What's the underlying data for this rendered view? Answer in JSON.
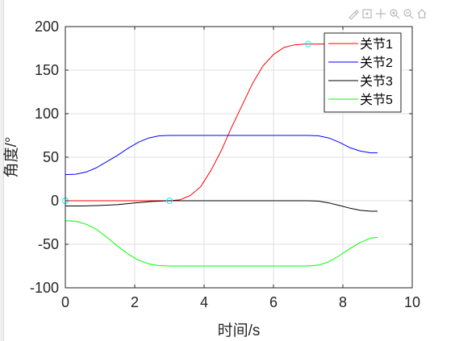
{
  "chart_data": {
    "type": "line",
    "title": "",
    "xlabel": "时间/s",
    "ylabel": "角度/°",
    "xlim": [
      0,
      10
    ],
    "ylim": [
      -100,
      200
    ],
    "xticks": [
      "0",
      "2",
      "4",
      "6",
      "8",
      "10"
    ],
    "yticks": [
      "-100",
      "-50",
      "0",
      "50",
      "100",
      "150",
      "200"
    ],
    "grid": true,
    "legend_position": "top-right",
    "series": [
      {
        "name": "关节1",
        "color": "#ff0000",
        "x": [
          0,
          0.5,
          1,
          1.5,
          2,
          2.5,
          3,
          3.3,
          3.6,
          3.9,
          4.2,
          4.5,
          4.8,
          5.1,
          5.4,
          5.7,
          6.0,
          6.3,
          6.6,
          6.9,
          7.2,
          7.5,
          8,
          8.5,
          9
        ],
        "y": [
          0,
          0,
          0,
          0,
          0,
          0,
          0,
          1,
          6,
          16,
          35,
          58,
          85,
          110,
          135,
          155,
          168,
          176,
          179,
          180,
          180,
          180,
          180,
          180,
          180
        ]
      },
      {
        "name": "关节2",
        "color": "#0000ff",
        "x": [
          0,
          0.3,
          0.6,
          0.9,
          1.2,
          1.5,
          1.8,
          2.1,
          2.4,
          2.7,
          3.0,
          4,
          5,
          6,
          7,
          7.3,
          7.6,
          7.9,
          8.2,
          8.5,
          8.8,
          9
        ],
        "y": [
          30,
          30.5,
          33,
          38,
          45,
          52,
          60,
          67,
          72,
          74.5,
          75,
          75,
          75,
          75,
          75,
          74.5,
          72,
          67,
          61,
          57,
          55,
          55
        ]
      },
      {
        "name": "关节3",
        "color": "#000000",
        "x": [
          0,
          0.5,
          1,
          1.5,
          2,
          2.5,
          3,
          4,
          5,
          6,
          7,
          7.3,
          7.6,
          7.9,
          8.2,
          8.5,
          8.8,
          9
        ],
        "y": [
          -6,
          -6,
          -5.5,
          -4.5,
          -2.5,
          -0.8,
          0,
          0,
          0,
          0,
          0,
          -0.5,
          -2.5,
          -5.5,
          -8.5,
          -11,
          -12,
          -12
        ]
      },
      {
        "name": "关节5",
        "color": "#00ff00",
        "x": [
          0,
          0.3,
          0.6,
          0.9,
          1.2,
          1.5,
          1.8,
          2.1,
          2.4,
          2.7,
          3.0,
          4,
          5,
          6,
          7,
          7.3,
          7.6,
          7.9,
          8.2,
          8.5,
          8.8,
          9
        ],
        "y": [
          -23,
          -23.5,
          -27,
          -33,
          -42,
          -52,
          -61,
          -68,
          -72.5,
          -74.5,
          -75,
          -75,
          -75,
          -75,
          -75,
          -74,
          -70,
          -63,
          -55,
          -48,
          -43,
          -42
        ]
      }
    ],
    "markers": {
      "color": "#00ffff",
      "points": [
        [
          0,
          0
        ],
        [
          3,
          0
        ],
        [
          7,
          180
        ]
      ]
    }
  }
}
